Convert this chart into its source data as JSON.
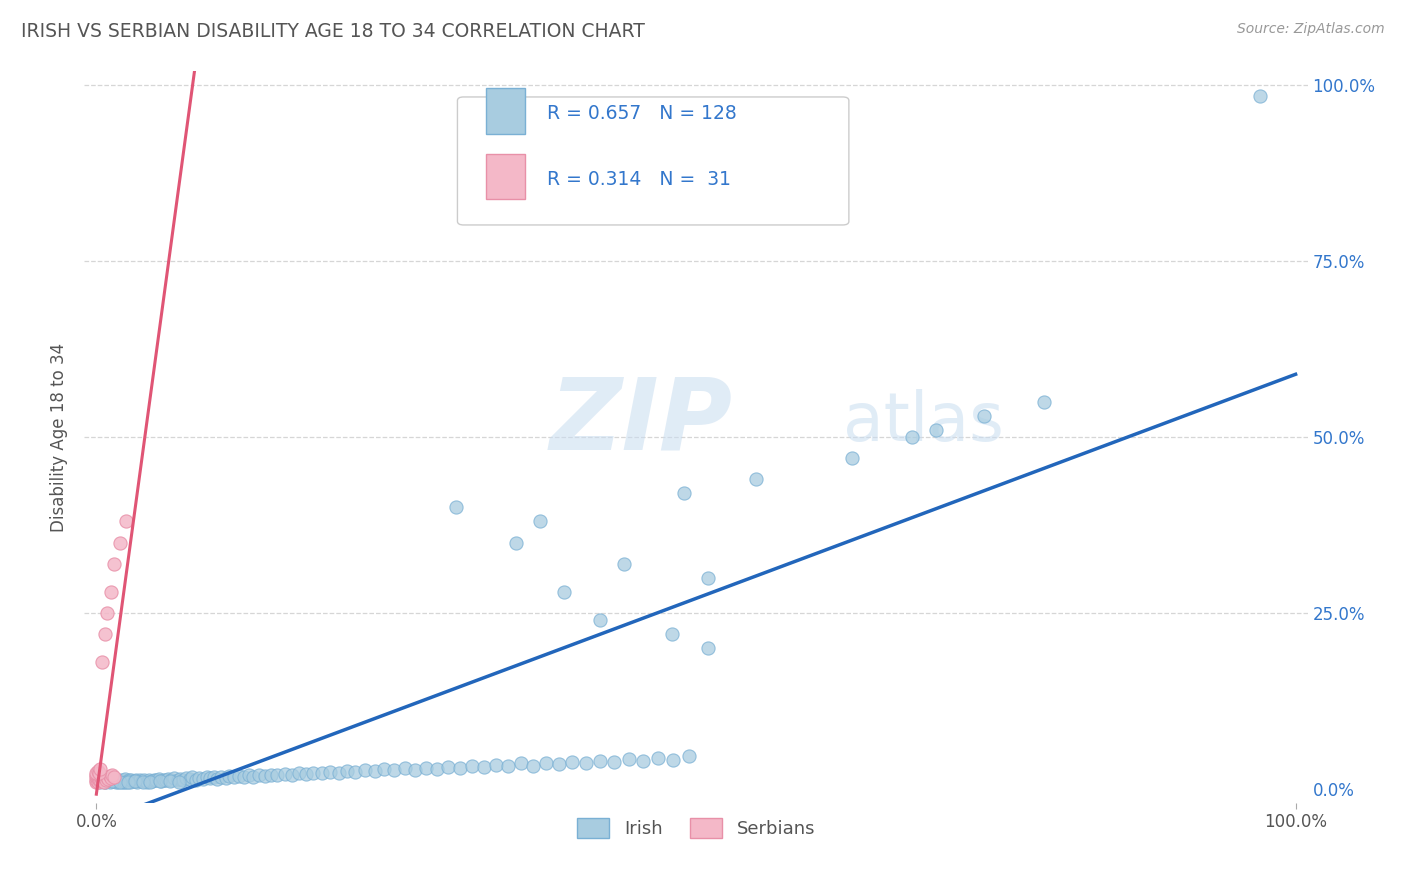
{
  "title": "IRISH VS SERBIAN DISABILITY AGE 18 TO 34 CORRELATION CHART",
  "source_text": "Source: ZipAtlas.com",
  "ylabel": "Disability Age 18 to 34",
  "irish_R": 0.657,
  "irish_N": 128,
  "serbian_R": 0.314,
  "serbian_N": 31,
  "watermark_zip": "ZIP",
  "watermark_atlas": "atlas",
  "irish_color": "#a8cce0",
  "irish_edge_color": "#7ab0d4",
  "serbian_color": "#f4b8c8",
  "serbian_edge_color": "#e890a8",
  "irish_line_color": "#2266bb",
  "serbian_line_color": "#e05575",
  "serbian_dash_color": "#ddaaaa",
  "background_color": "#ffffff",
  "grid_color": "#cccccc",
  "title_color": "#555555",
  "label_color": "#555555",
  "right_tick_color": "#3377cc",
  "legend_box_color": "#cccccc",
  "irish_scatter_x": [
    0.003,
    0.006,
    0.007,
    0.009,
    0.011,
    0.012,
    0.014,
    0.015,
    0.016,
    0.017,
    0.018,
    0.019,
    0.021,
    0.022,
    0.023,
    0.024,
    0.025,
    0.027,
    0.028,
    0.029,
    0.031,
    0.033,
    0.034,
    0.036,
    0.038,
    0.04,
    0.042,
    0.044,
    0.046,
    0.048,
    0.05,
    0.052,
    0.054,
    0.056,
    0.058,
    0.06,
    0.062,
    0.065,
    0.068,
    0.07,
    0.072,
    0.075,
    0.078,
    0.08,
    0.083,
    0.086,
    0.089,
    0.092,
    0.095,
    0.098,
    0.101,
    0.104,
    0.108,
    0.111,
    0.115,
    0.119,
    0.123,
    0.127,
    0.131,
    0.136,
    0.141,
    0.146,
    0.151,
    0.157,
    0.163,
    0.169,
    0.175,
    0.181,
    0.188,
    0.195,
    0.202,
    0.209,
    0.216,
    0.224,
    0.232,
    0.24,
    0.248,
    0.257,
    0.266,
    0.275,
    0.284,
    0.293,
    0.303,
    0.313,
    0.323,
    0.333,
    0.343,
    0.354,
    0.364,
    0.375,
    0.386,
    0.397,
    0.408,
    0.42,
    0.432,
    0.444,
    0.456,
    0.468,
    0.481,
    0.494,
    0.007,
    0.013,
    0.02,
    0.026,
    0.032,
    0.039,
    0.045,
    0.053,
    0.061,
    0.069,
    0.51,
    0.48,
    0.42,
    0.39,
    0.51,
    0.44,
    0.35,
    0.37,
    0.3,
    0.49,
    0.55,
    0.97,
    0.62,
    0.63,
    0.68,
    0.7,
    0.74,
    0.79
  ],
  "irish_scatter_y": [
    0.01,
    0.012,
    0.01,
    0.013,
    0.01,
    0.012,
    0.011,
    0.013,
    0.01,
    0.012,
    0.01,
    0.013,
    0.01,
    0.012,
    0.01,
    0.014,
    0.01,
    0.013,
    0.01,
    0.012,
    0.011,
    0.013,
    0.01,
    0.012,
    0.011,
    0.013,
    0.01,
    0.013,
    0.011,
    0.013,
    0.012,
    0.014,
    0.011,
    0.013,
    0.012,
    0.014,
    0.013,
    0.015,
    0.012,
    0.014,
    0.013,
    0.015,
    0.014,
    0.016,
    0.013,
    0.015,
    0.014,
    0.016,
    0.015,
    0.017,
    0.014,
    0.016,
    0.015,
    0.018,
    0.016,
    0.018,
    0.017,
    0.019,
    0.016,
    0.019,
    0.018,
    0.02,
    0.019,
    0.021,
    0.02,
    0.022,
    0.021,
    0.023,
    0.022,
    0.024,
    0.023,
    0.025,
    0.024,
    0.027,
    0.025,
    0.028,
    0.026,
    0.029,
    0.027,
    0.03,
    0.028,
    0.031,
    0.03,
    0.033,
    0.031,
    0.034,
    0.032,
    0.036,
    0.033,
    0.037,
    0.035,
    0.038,
    0.037,
    0.04,
    0.038,
    0.042,
    0.04,
    0.044,
    0.041,
    0.046,
    0.01,
    0.011,
    0.01,
    0.01,
    0.011,
    0.01,
    0.01,
    0.011,
    0.011,
    0.01,
    0.2,
    0.22,
    0.24,
    0.28,
    0.3,
    0.32,
    0.35,
    0.38,
    0.4,
    0.42,
    0.44,
    0.985,
    0.82,
    0.47,
    0.5,
    0.51,
    0.53,
    0.55
  ],
  "serbian_scatter_x": [
    0.0,
    0.0,
    0.0,
    0.0,
    0.001,
    0.001,
    0.002,
    0.002,
    0.003,
    0.004,
    0.005,
    0.006,
    0.007,
    0.008,
    0.009,
    0.01,
    0.011,
    0.012,
    0.013,
    0.015,
    0.0,
    0.001,
    0.002,
    0.003,
    0.005,
    0.007,
    0.009,
    0.012,
    0.015,
    0.02,
    0.025
  ],
  "serbian_scatter_y": [
    0.01,
    0.013,
    0.016,
    0.02,
    0.01,
    0.015,
    0.013,
    0.018,
    0.012,
    0.015,
    0.014,
    0.01,
    0.016,
    0.013,
    0.017,
    0.014,
    0.018,
    0.015,
    0.02,
    0.016,
    0.023,
    0.025,
    0.022,
    0.028,
    0.18,
    0.22,
    0.25,
    0.28,
    0.32,
    0.35,
    0.38
  ]
}
